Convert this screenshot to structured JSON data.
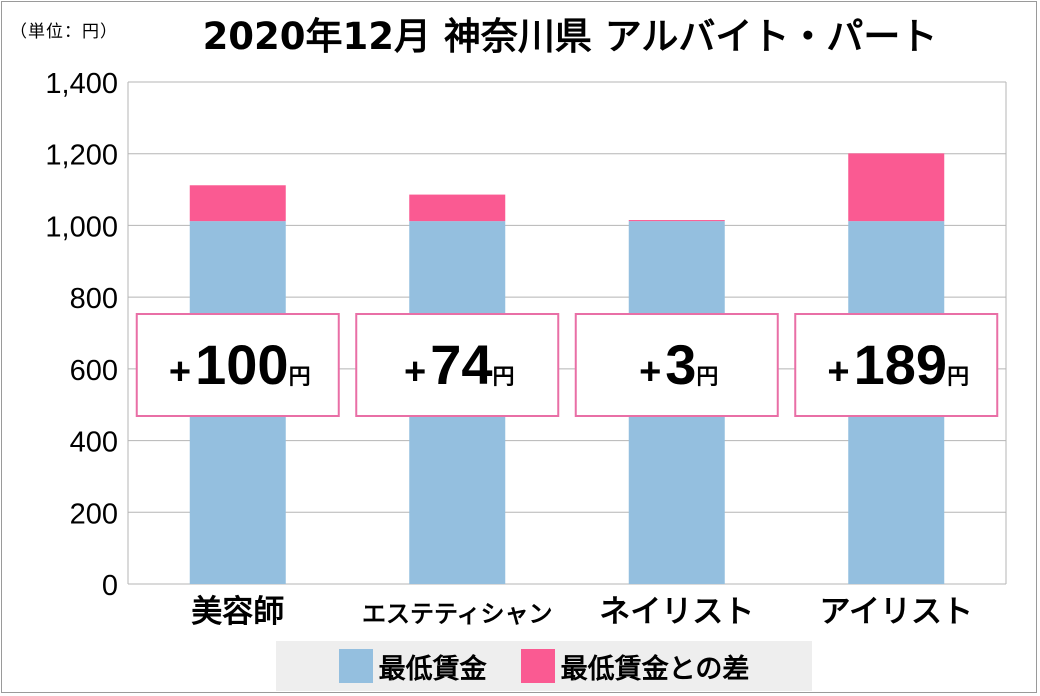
{
  "unit_note": "（単位：円）",
  "title": "2020年12月 神奈川県 アルバイト・パート",
  "colors": {
    "min_wage": "#94bfdf",
    "diff": "#fa5a92",
    "grid": "#b5b5b5",
    "box_border": "#e96fa6"
  },
  "chart_data": {
    "type": "bar",
    "stacked": true,
    "title": "2020年12月 神奈川県 アルバイト・パート",
    "ylabel": "（単位：円）",
    "ylim": [
      0,
      1400
    ],
    "yticks": [
      0,
      200,
      400,
      600,
      800,
      1000,
      1200,
      1400
    ],
    "ytick_labels": [
      "0",
      "200",
      "400",
      "600",
      "800",
      "1,000",
      "1,200",
      "1,400"
    ],
    "grid": true,
    "legend_position": "bottom",
    "categories": [
      "美容師",
      "エステティシャン",
      "ネイリスト",
      "アイリスト"
    ],
    "series": [
      {
        "name": "最低賃金",
        "values": [
          1012,
          1012,
          1012,
          1012
        ]
      },
      {
        "name": "最低賃金との差",
        "values": [
          100,
          74,
          3,
          189
        ]
      }
    ],
    "annotations": [
      {
        "sign": "+",
        "number": "100",
        "unit": "円"
      },
      {
        "sign": "+",
        "number": "74",
        "unit": "円"
      },
      {
        "sign": "+",
        "number": "3",
        "unit": "円"
      },
      {
        "sign": "+",
        "number": "189",
        "unit": "円"
      }
    ]
  }
}
